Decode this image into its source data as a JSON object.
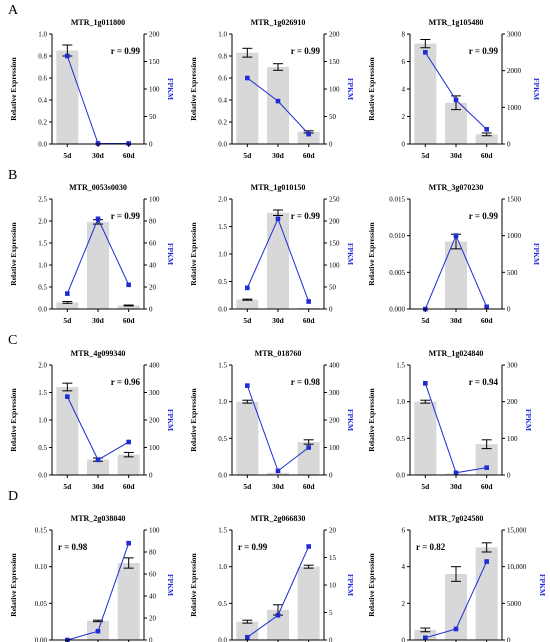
{
  "colors": {
    "bar": "#d8d8d8",
    "line": "#1f2bd6",
    "axis": "#000000",
    "fpkm_label": "#1f2bd6"
  },
  "chart_data": [
    {
      "type": "bar-line",
      "panel": "A",
      "title": "MTR_1g011800",
      "categories": [
        "5d",
        "30d",
        "60d"
      ],
      "ylabel": "Relative Expression",
      "y2label": "FPKM",
      "ylim": [
        0,
        1.0
      ],
      "yticks": [
        0.0,
        0.2,
        0.4,
        0.6,
        0.8,
        1.0
      ],
      "ytick_labels": [
        "0.0",
        "0.2",
        "0.4",
        "0.6",
        "0.8",
        "1.0"
      ],
      "y2lim": [
        0,
        200
      ],
      "y2ticks": [
        0,
        50,
        100,
        150,
        200
      ],
      "bars": [
        0.85,
        0.002,
        0.001
      ],
      "errors": [
        0.05,
        0.0,
        0.0
      ],
      "fpkm": [
        160,
        1,
        1
      ],
      "annotation": "r = 0.99",
      "annotation_pos": "top-right"
    },
    {
      "type": "bar-line",
      "panel": "",
      "title": "MTR_1g026910",
      "categories": [
        "5d",
        "30d",
        "60d"
      ],
      "ylabel": "Relative Expression",
      "y2label": "FPKM",
      "ylim": [
        0,
        1.0
      ],
      "yticks": [
        0.0,
        0.2,
        0.4,
        0.6,
        0.8,
        1.0
      ],
      "ytick_labels": [
        "0.0",
        "0.2",
        "0.4",
        "0.6",
        "0.8",
        "1.0"
      ],
      "y2lim": [
        0,
        200
      ],
      "y2ticks": [
        0,
        50,
        100,
        150,
        200
      ],
      "bars": [
        0.83,
        0.7,
        0.11
      ],
      "errors": [
        0.04,
        0.03,
        0.01
      ],
      "fpkm": [
        120,
        78,
        18
      ],
      "annotation": "r = 0.99",
      "annotation_pos": "top-right"
    },
    {
      "type": "bar-line",
      "panel": "",
      "title": "MTR_1g105480",
      "categories": [
        "5d",
        "30d",
        "60d"
      ],
      "ylabel": "Relative Expression",
      "y2label": "FPKM",
      "ylim": [
        0,
        8
      ],
      "yticks": [
        0,
        2,
        4,
        6,
        8
      ],
      "ytick_labels": [
        "0",
        "2",
        "4",
        "6",
        "8"
      ],
      "y2lim": [
        0,
        3000
      ],
      "y2ticks": [
        0,
        1000,
        2000,
        3000
      ],
      "bars": [
        7.3,
        3.0,
        0.7
      ],
      "errors": [
        0.3,
        0.5,
        0.1
      ],
      "fpkm": [
        2500,
        1200,
        400
      ],
      "annotation": "r = 0.99",
      "annotation_pos": "top-right"
    },
    {
      "type": "bar-line",
      "panel": "B",
      "title": "MTR_0053s0030",
      "categories": [
        "5d",
        "30d",
        "60d"
      ],
      "ylabel": "Relative Expression",
      "y2label": "FPKM",
      "ylim": [
        0,
        2.5
      ],
      "yticks": [
        0.0,
        0.5,
        1.0,
        1.5,
        2.0,
        2.5
      ],
      "ytick_labels": [
        "0.0",
        "0.5",
        "1.0",
        "1.5",
        "2.0",
        "2.5"
      ],
      "y2lim": [
        0,
        100
      ],
      "y2ticks": [
        0,
        20,
        40,
        60,
        80,
        100
      ],
      "bars": [
        0.15,
        1.98,
        0.08
      ],
      "errors": [
        0.02,
        0.05,
        0.01
      ],
      "fpkm": [
        14,
        82,
        22
      ],
      "annotation": "r = 0.99",
      "annotation_pos": "top-right"
    },
    {
      "type": "bar-line",
      "panel": "",
      "title": "MTR_1g010150",
      "categories": [
        "5d",
        "30d",
        "60d"
      ],
      "ylabel": "Relative Expression",
      "y2label": "FPKM",
      "ylim": [
        0,
        2.0
      ],
      "yticks": [
        0.0,
        0.5,
        1.0,
        1.5,
        2.0
      ],
      "ytick_labels": [
        "0.0",
        "0.5",
        "1.0",
        "1.5",
        "2.0"
      ],
      "y2lim": [
        0,
        250
      ],
      "y2ticks": [
        0,
        50,
        100,
        150,
        200,
        250
      ],
      "bars": [
        0.17,
        1.75,
        0.02
      ],
      "errors": [
        0.01,
        0.05,
        0.0
      ],
      "fpkm": [
        48,
        205,
        17
      ],
      "annotation": "r = 0.99",
      "annotation_pos": "top-right"
    },
    {
      "type": "bar-line",
      "panel": "",
      "title": "MTR_3g070230",
      "categories": [
        "5d",
        "30d",
        "60d"
      ],
      "ylabel": "Relative Expression",
      "y2label": "FPKM",
      "ylim": [
        0,
        0.015
      ],
      "yticks": [
        0.0,
        0.005,
        0.01,
        0.015
      ],
      "ytick_labels": [
        "0.000",
        "0.005",
        "0.010",
        "0.015"
      ],
      "y2lim": [
        0,
        1500
      ],
      "y2ticks": [
        0,
        500,
        1000,
        1500
      ],
      "bars": [
        0.0,
        0.0092,
        0.0
      ],
      "errors": [
        0.0,
        0.001,
        0.0
      ],
      "fpkm": [
        0,
        1000,
        30
      ],
      "annotation": "r = 0.99",
      "annotation_pos": "top-right"
    },
    {
      "type": "bar-line",
      "panel": "C",
      "title": "MTR_4g099340",
      "categories": [
        "5d",
        "30d",
        "60d"
      ],
      "ylabel": "Relative Expression",
      "y2label": "FPKM",
      "ylim": [
        0,
        2.0
      ],
      "yticks": [
        0.0,
        0.5,
        1.0,
        1.5,
        2.0
      ],
      "ytick_labels": [
        "0.0",
        "0.5",
        "1.0",
        "1.5",
        "2.0"
      ],
      "y2lim": [
        0,
        400
      ],
      "y2ticks": [
        0,
        100,
        200,
        300,
        400
      ],
      "bars": [
        1.6,
        0.28,
        0.37
      ],
      "errors": [
        0.07,
        0.03,
        0.04
      ],
      "fpkm": [
        285,
        55,
        120
      ],
      "annotation": "r = 0.96",
      "annotation_pos": "top-right"
    },
    {
      "type": "bar-line",
      "panel": "",
      "title": "MTR_018760",
      "categories": [
        "5d",
        "30d",
        "60d"
      ],
      "ylabel": "Relative Expression",
      "y2label": "FPKM",
      "ylim": [
        0,
        1.5
      ],
      "yticks": [
        0.0,
        0.5,
        1.0,
        1.5
      ],
      "ytick_labels": [
        "0.0",
        "0.5",
        "1.0",
        "1.5"
      ],
      "y2lim": [
        0,
        400
      ],
      "y2ticks": [
        0,
        100,
        200,
        300,
        400
      ],
      "bars": [
        1.0,
        0.03,
        0.45
      ],
      "errors": [
        0.02,
        0.0,
        0.03
      ],
      "fpkm": [
        325,
        15,
        100
      ],
      "annotation": "r = 0.98",
      "annotation_pos": "top-right"
    },
    {
      "type": "bar-line",
      "panel": "",
      "title": "MTR_1g024840",
      "categories": [
        "5d",
        "30d",
        "60d"
      ],
      "ylabel": "Relative Expression",
      "y2label": "FPKM",
      "ylim": [
        0,
        1.5
      ],
      "yticks": [
        0.0,
        0.5,
        1.0,
        1.5
      ],
      "ytick_labels": [
        "0.0",
        "0.5",
        "1.0",
        "1.5"
      ],
      "y2lim": [
        0,
        300
      ],
      "y2ticks": [
        0,
        100,
        200,
        300
      ],
      "bars": [
        1.0,
        0.02,
        0.42
      ],
      "errors": [
        0.02,
        0.0,
        0.06
      ],
      "fpkm": [
        250,
        6,
        20
      ],
      "annotation": "r = 0.94",
      "annotation_pos": "top-right"
    },
    {
      "type": "bar-line",
      "panel": "D",
      "title": "MTR_2g038040",
      "categories": [
        "5d",
        "30d",
        "60d"
      ],
      "ylabel": "Relative Expression",
      "y2label": "FPKM",
      "ylim": [
        0,
        0.15
      ],
      "yticks": [
        0.0,
        0.05,
        0.1,
        0.15
      ],
      "ytick_labels": [
        "0.00",
        "0.05",
        "0.10",
        "0.15"
      ],
      "y2lim": [
        0,
        100
      ],
      "y2ticks": [
        0,
        20,
        40,
        60,
        80,
        100
      ],
      "bars": [
        0.0005,
        0.026,
        0.105
      ],
      "errors": [
        0.0,
        0.001,
        0.007
      ],
      "fpkm": [
        0,
        8,
        88
      ],
      "annotation": "r = 0.98",
      "annotation_pos": "top-left"
    },
    {
      "type": "bar-line",
      "panel": "",
      "title": "MTR_2g066830",
      "categories": [
        "5d",
        "30d",
        "60d"
      ],
      "ylabel": "Relative Expression",
      "y2label": "FPKM",
      "ylim": [
        0,
        1.5
      ],
      "yticks": [
        0.0,
        0.5,
        1.0,
        1.5
      ],
      "ytick_labels": [
        "0.0",
        "0.5",
        "1.0",
        "1.5"
      ],
      "y2lim": [
        0,
        20
      ],
      "y2ticks": [
        0,
        5,
        10,
        15,
        20
      ],
      "bars": [
        0.25,
        0.41,
        1.0
      ],
      "errors": [
        0.02,
        0.07,
        0.02
      ],
      "fpkm": [
        0.5,
        4.5,
        17
      ],
      "annotation": "r = 0.99",
      "annotation_pos": "top-left"
    },
    {
      "type": "bar-line",
      "panel": "",
      "title": "MTR_7g024580",
      "categories": [
        "5d",
        "30d",
        "60d"
      ],
      "ylabel": "Relative Expression",
      "y2label": "FPKM",
      "ylim": [
        0,
        6
      ],
      "yticks": [
        0,
        2,
        4,
        6
      ],
      "ytick_labels": [
        "0",
        "2",
        "4",
        "6"
      ],
      "y2lim": [
        0,
        15000
      ],
      "y2ticks": [
        0,
        5000,
        10000,
        15000
      ],
      "y2tick_labels": [
        "0",
        "5000",
        "10,000",
        "15,000"
      ],
      "bars": [
        0.55,
        3.6,
        5.05
      ],
      "errors": [
        0.1,
        0.4,
        0.25
      ],
      "fpkm": [
        300,
        1500,
        10700
      ],
      "annotation": "r = 0.82",
      "annotation_pos": "top-left"
    }
  ]
}
